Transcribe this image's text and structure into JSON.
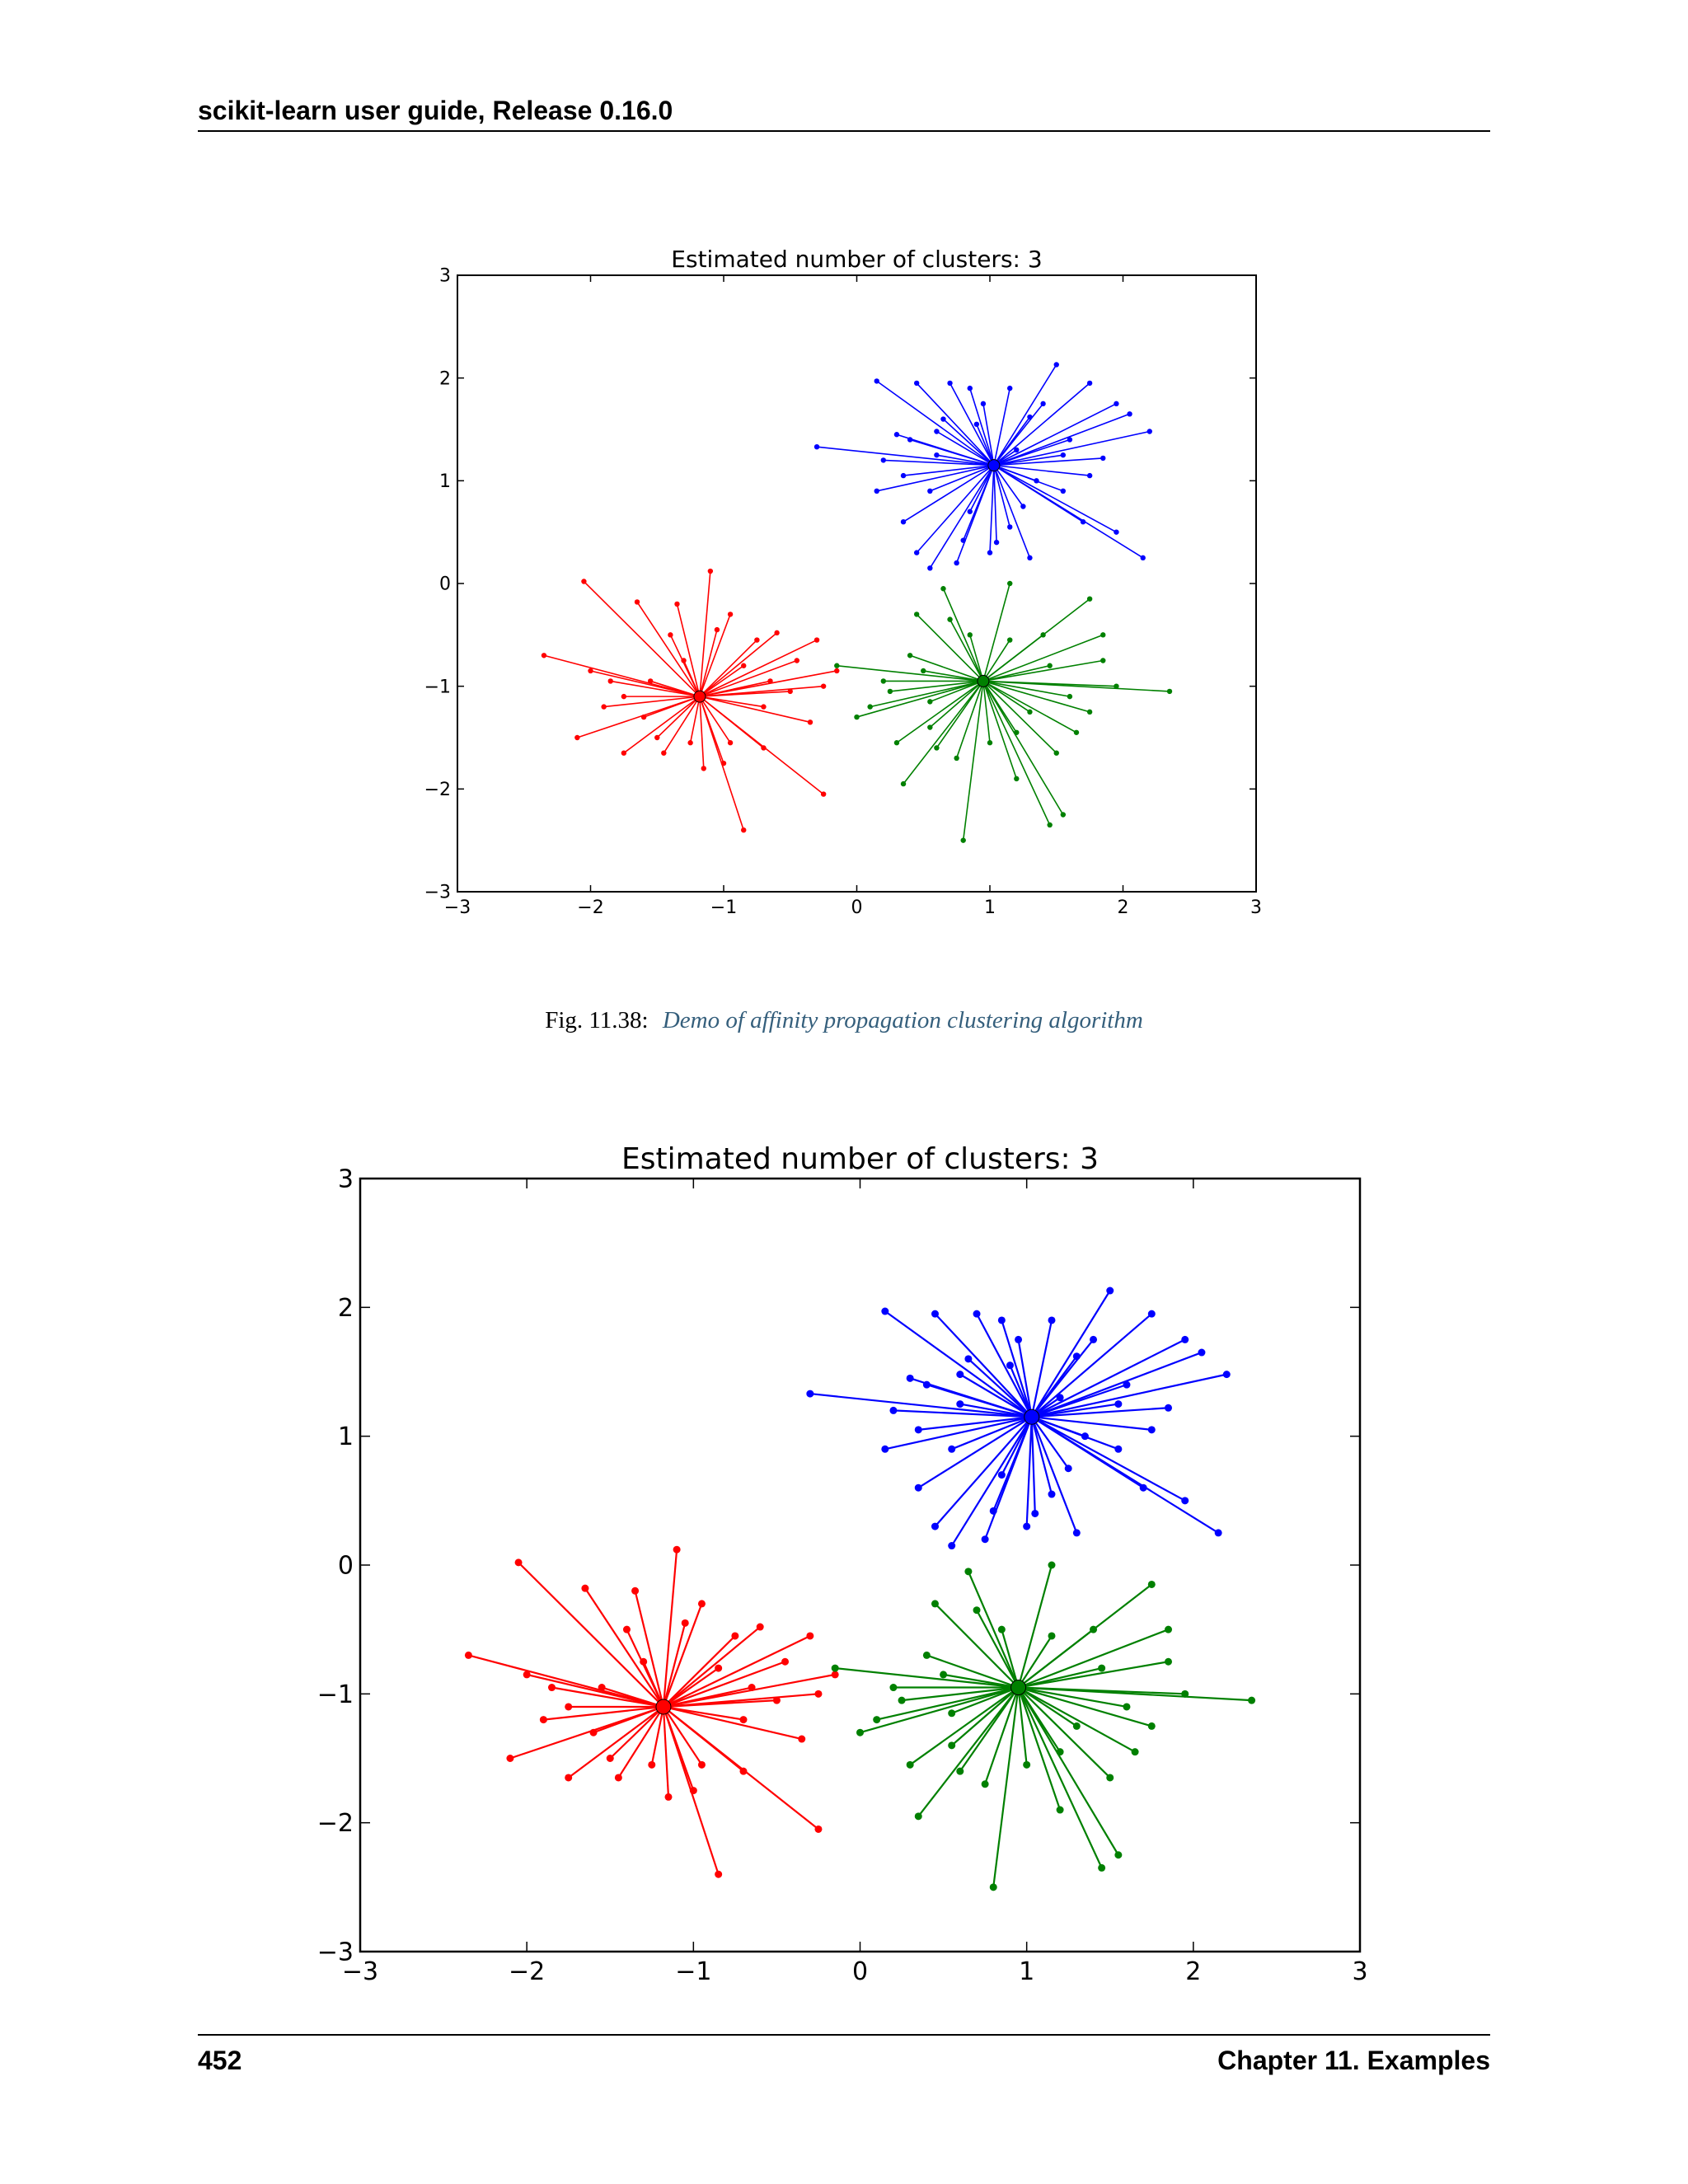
{
  "header": {
    "title": "scikit-learn user guide, Release 0.16.0"
  },
  "caption": {
    "label": "Fig.  11.38:",
    "text": "Demo of affinity propagation clustering algorithm"
  },
  "footer": {
    "page_number": "452",
    "chapter": "Chapter 11.  Examples"
  },
  "colors": {
    "red": "#ff0000",
    "green": "#008000",
    "blue": "#0000ff",
    "link": "#355f7c"
  },
  "chart_data": [
    {
      "type": "scatter",
      "title": "Estimated number of clusters: 3",
      "xlim": [
        -3,
        3
      ],
      "ylim": [
        -3,
        3
      ],
      "xticks": [
        "−3",
        "−2",
        "−1",
        "0",
        "1",
        "2",
        "3"
      ],
      "yticks": [
        "−3",
        "−2",
        "−1",
        "0",
        "1",
        "2",
        "3"
      ],
      "grid": false,
      "series": [
        {
          "color": "#0000ff",
          "center": [
            1.03,
            1.15
          ],
          "points": [
            [
              -0.3,
              1.33
            ],
            [
              0.15,
              1.97
            ],
            [
              0.45,
              1.95
            ],
            [
              0.7,
              1.95
            ],
            [
              0.85,
              1.9
            ],
            [
              1.15,
              1.9
            ],
            [
              1.5,
              2.13
            ],
            [
              1.75,
              1.95
            ],
            [
              1.95,
              1.75
            ],
            [
              2.05,
              1.65
            ],
            [
              2.2,
              1.48
            ],
            [
              1.85,
              1.22
            ],
            [
              1.75,
              1.05
            ],
            [
              1.55,
              0.9
            ],
            [
              1.7,
              0.6
            ],
            [
              1.95,
              0.5
            ],
            [
              2.15,
              0.25
            ],
            [
              1.3,
              0.25
            ],
            [
              1.05,
              0.4
            ],
            [
              0.75,
              0.2
            ],
            [
              0.55,
              0.15
            ],
            [
              0.45,
              0.3
            ],
            [
              0.35,
              0.6
            ],
            [
              0.15,
              0.9
            ],
            [
              0.35,
              1.05
            ],
            [
              0.4,
              1.4
            ],
            [
              0.6,
              1.48
            ],
            [
              0.9,
              1.55
            ],
            [
              1.3,
              1.62
            ],
            [
              1.6,
              1.4
            ],
            [
              1.15,
              0.55
            ],
            [
              0.85,
              0.7
            ],
            [
              0.2,
              1.2
            ],
            [
              1.4,
              1.75
            ],
            [
              0.95,
              1.75
            ],
            [
              0.6,
              1.25
            ],
            [
              1.2,
              1.3
            ],
            [
              0.55,
              0.9
            ],
            [
              1.35,
              1.0
            ],
            [
              0.8,
              0.42
            ],
            [
              1.25,
              0.75
            ],
            [
              1.55,
              1.25
            ],
            [
              0.3,
              1.45
            ],
            [
              1.0,
              0.3
            ],
            [
              0.65,
              1.6
            ]
          ]
        },
        {
          "color": "#ff0000",
          "center": [
            -1.18,
            -1.1
          ],
          "points": [
            [
              -2.35,
              -0.7
            ],
            [
              -2.05,
              0.02
            ],
            [
              -1.65,
              -0.18
            ],
            [
              -1.35,
              -0.2
            ],
            [
              -1.1,
              0.12
            ],
            [
              -0.95,
              -0.3
            ],
            [
              -0.6,
              -0.48
            ],
            [
              -0.3,
              -0.55
            ],
            [
              -0.15,
              -0.85
            ],
            [
              -0.25,
              -2.05
            ],
            [
              -0.85,
              -2.4
            ],
            [
              -1.15,
              -1.8
            ],
            [
              -1.45,
              -1.65
            ],
            [
              -1.75,
              -1.65
            ],
            [
              -2.1,
              -1.5
            ],
            [
              -1.9,
              -1.2
            ],
            [
              -2.0,
              -0.85
            ],
            [
              -1.55,
              -0.95
            ],
            [
              -0.7,
              -1.2
            ],
            [
              -0.35,
              -1.35
            ],
            [
              -0.7,
              -1.6
            ],
            [
              -0.95,
              -1.55
            ],
            [
              -1.3,
              -0.75
            ],
            [
              -0.85,
              -0.8
            ],
            [
              -1.6,
              -1.3
            ],
            [
              -1.0,
              -1.75
            ],
            [
              -0.5,
              -1.05
            ],
            [
              -1.85,
              -0.95
            ],
            [
              -0.65,
              -0.95
            ],
            [
              -1.4,
              -0.5
            ],
            [
              -0.75,
              -0.55
            ],
            [
              -1.25,
              -1.55
            ],
            [
              -0.25,
              -1.0
            ],
            [
              -1.75,
              -1.1
            ],
            [
              -1.05,
              -0.45
            ],
            [
              -0.45,
              -0.75
            ],
            [
              -1.5,
              -1.5
            ]
          ]
        },
        {
          "color": "#008000",
          "center": [
            0.95,
            -0.95
          ],
          "points": [
            [
              -0.15,
              -0.8
            ],
            [
              0.0,
              -1.3
            ],
            [
              0.3,
              -1.55
            ],
            [
              0.35,
              -1.95
            ],
            [
              0.8,
              -2.5
            ],
            [
              1.45,
              -2.35
            ],
            [
              1.55,
              -2.25
            ],
            [
              1.65,
              -1.45
            ],
            [
              2.35,
              -1.05
            ],
            [
              1.85,
              -0.75
            ],
            [
              1.85,
              -0.5
            ],
            [
              1.75,
              -0.15
            ],
            [
              1.15,
              0.0
            ],
            [
              0.65,
              -0.05
            ],
            [
              0.45,
              -0.3
            ],
            [
              0.4,
              -0.7
            ],
            [
              0.25,
              -1.05
            ],
            [
              0.55,
              -1.4
            ],
            [
              0.75,
              -1.7
            ],
            [
              1.2,
              -1.9
            ],
            [
              1.5,
              -1.65
            ],
            [
              1.3,
              -1.25
            ],
            [
              1.6,
              -1.1
            ],
            [
              1.45,
              -0.8
            ],
            [
              1.15,
              -0.55
            ],
            [
              0.85,
              -0.5
            ],
            [
              0.2,
              -0.95
            ],
            [
              1.0,
              -1.55
            ],
            [
              0.55,
              -1.15
            ],
            [
              1.4,
              -0.5
            ],
            [
              0.1,
              -1.2
            ],
            [
              1.95,
              -1.0
            ],
            [
              0.7,
              -0.35
            ],
            [
              1.2,
              -1.45
            ],
            [
              0.5,
              -0.85
            ],
            [
              0.6,
              -1.6
            ],
            [
              1.75,
              -1.25
            ]
          ]
        }
      ]
    },
    {
      "type": "scatter",
      "title": "Estimated number of clusters: 3",
      "xlim": [
        -3,
        3
      ],
      "ylim": [
        -3,
        3
      ],
      "xticks": [
        "−3",
        "−2",
        "−1",
        "0",
        "1",
        "2",
        "3"
      ],
      "yticks": [
        "−3",
        "−2",
        "−1",
        "0",
        "1",
        "2",
        "3"
      ],
      "grid": false,
      "series": [
        {
          "color": "#0000ff",
          "center": [
            1.03,
            1.15
          ],
          "points": [
            [
              -0.3,
              1.33
            ],
            [
              0.15,
              1.97
            ],
            [
              0.45,
              1.95
            ],
            [
              0.7,
              1.95
            ],
            [
              0.85,
              1.9
            ],
            [
              1.15,
              1.9
            ],
            [
              1.5,
              2.13
            ],
            [
              1.75,
              1.95
            ],
            [
              1.95,
              1.75
            ],
            [
              2.05,
              1.65
            ],
            [
              2.2,
              1.48
            ],
            [
              1.85,
              1.22
            ],
            [
              1.75,
              1.05
            ],
            [
              1.55,
              0.9
            ],
            [
              1.7,
              0.6
            ],
            [
              1.95,
              0.5
            ],
            [
              2.15,
              0.25
            ],
            [
              1.3,
              0.25
            ],
            [
              1.05,
              0.4
            ],
            [
              0.75,
              0.2
            ],
            [
              0.55,
              0.15
            ],
            [
              0.45,
              0.3
            ],
            [
              0.35,
              0.6
            ],
            [
              0.15,
              0.9
            ],
            [
              0.35,
              1.05
            ],
            [
              0.4,
              1.4
            ],
            [
              0.6,
              1.48
            ],
            [
              0.9,
              1.55
            ],
            [
              1.3,
              1.62
            ],
            [
              1.6,
              1.4
            ],
            [
              1.15,
              0.55
            ],
            [
              0.85,
              0.7
            ],
            [
              0.2,
              1.2
            ],
            [
              1.4,
              1.75
            ],
            [
              0.95,
              1.75
            ],
            [
              0.6,
              1.25
            ],
            [
              1.2,
              1.3
            ],
            [
              0.55,
              0.9
            ],
            [
              1.35,
              1.0
            ],
            [
              0.8,
              0.42
            ],
            [
              1.25,
              0.75
            ],
            [
              1.55,
              1.25
            ],
            [
              0.3,
              1.45
            ],
            [
              1.0,
              0.3
            ],
            [
              0.65,
              1.6
            ]
          ]
        },
        {
          "color": "#ff0000",
          "center": [
            -1.18,
            -1.1
          ],
          "points": [
            [
              -2.35,
              -0.7
            ],
            [
              -2.05,
              0.02
            ],
            [
              -1.65,
              -0.18
            ],
            [
              -1.35,
              -0.2
            ],
            [
              -1.1,
              0.12
            ],
            [
              -0.95,
              -0.3
            ],
            [
              -0.6,
              -0.48
            ],
            [
              -0.3,
              -0.55
            ],
            [
              -0.15,
              -0.85
            ],
            [
              -0.25,
              -2.05
            ],
            [
              -0.85,
              -2.4
            ],
            [
              -1.15,
              -1.8
            ],
            [
              -1.45,
              -1.65
            ],
            [
              -1.75,
              -1.65
            ],
            [
              -2.1,
              -1.5
            ],
            [
              -1.9,
              -1.2
            ],
            [
              -2.0,
              -0.85
            ],
            [
              -1.55,
              -0.95
            ],
            [
              -0.7,
              -1.2
            ],
            [
              -0.35,
              -1.35
            ],
            [
              -0.7,
              -1.6
            ],
            [
              -0.95,
              -1.55
            ],
            [
              -1.3,
              -0.75
            ],
            [
              -0.85,
              -0.8
            ],
            [
              -1.6,
              -1.3
            ],
            [
              -1.0,
              -1.75
            ],
            [
              -0.5,
              -1.05
            ],
            [
              -1.85,
              -0.95
            ],
            [
              -0.65,
              -0.95
            ],
            [
              -1.4,
              -0.5
            ],
            [
              -0.75,
              -0.55
            ],
            [
              -1.25,
              -1.55
            ],
            [
              -0.25,
              -1.0
            ],
            [
              -1.75,
              -1.1
            ],
            [
              -1.05,
              -0.45
            ],
            [
              -0.45,
              -0.75
            ],
            [
              -1.5,
              -1.5
            ]
          ]
        },
        {
          "color": "#008000",
          "center": [
            0.95,
            -0.95
          ],
          "points": [
            [
              -0.15,
              -0.8
            ],
            [
              0.0,
              -1.3
            ],
            [
              0.3,
              -1.55
            ],
            [
              0.35,
              -1.95
            ],
            [
              0.8,
              -2.5
            ],
            [
              1.45,
              -2.35
            ],
            [
              1.55,
              -2.25
            ],
            [
              1.65,
              -1.45
            ],
            [
              2.35,
              -1.05
            ],
            [
              1.85,
              -0.75
            ],
            [
              1.85,
              -0.5
            ],
            [
              1.75,
              -0.15
            ],
            [
              1.15,
              0.0
            ],
            [
              0.65,
              -0.05
            ],
            [
              0.45,
              -0.3
            ],
            [
              0.4,
              -0.7
            ],
            [
              0.25,
              -1.05
            ],
            [
              0.55,
              -1.4
            ],
            [
              0.75,
              -1.7
            ],
            [
              1.2,
              -1.9
            ],
            [
              1.5,
              -1.65
            ],
            [
              1.3,
              -1.25
            ],
            [
              1.6,
              -1.1
            ],
            [
              1.45,
              -0.8
            ],
            [
              1.15,
              -0.55
            ],
            [
              0.85,
              -0.5
            ],
            [
              0.2,
              -0.95
            ],
            [
              1.0,
              -1.55
            ],
            [
              0.55,
              -1.15
            ],
            [
              1.4,
              -0.5
            ],
            [
              0.1,
              -1.2
            ],
            [
              1.95,
              -1.0
            ],
            [
              0.7,
              -0.35
            ],
            [
              1.2,
              -1.45
            ],
            [
              0.5,
              -0.85
            ],
            [
              0.6,
              -1.6
            ],
            [
              1.75,
              -1.25
            ]
          ]
        }
      ]
    }
  ]
}
